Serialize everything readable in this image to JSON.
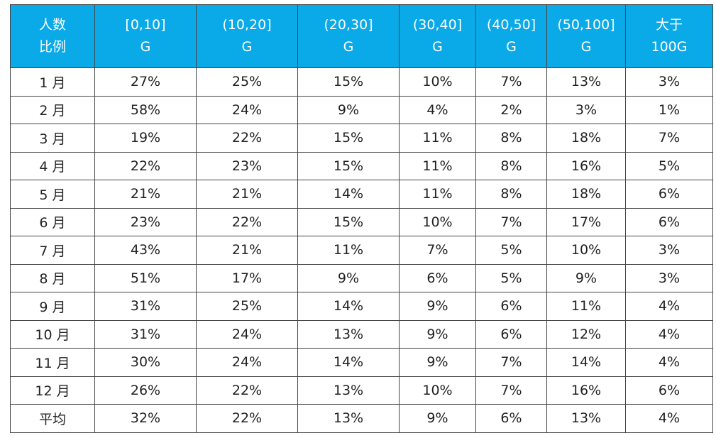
{
  "table": {
    "header": [
      [
        "人数",
        "比例"
      ],
      [
        "[0,10]",
        "G"
      ],
      [
        "(10,20]",
        "G"
      ],
      [
        "(20,30]",
        "G"
      ],
      [
        "(30,40]",
        "G"
      ],
      [
        "(40,50]",
        "G"
      ],
      [
        "(50,100]",
        "G"
      ],
      [
        "大于",
        "100G"
      ]
    ],
    "rows": [
      [
        "1 月",
        "27%",
        "25%",
        "15%",
        "10%",
        "7%",
        "13%",
        "3%"
      ],
      [
        "2 月",
        "58%",
        "24%",
        "9%",
        "4%",
        "2%",
        "3%",
        "1%"
      ],
      [
        "3 月",
        "19%",
        "22%",
        "15%",
        "11%",
        "8%",
        "18%",
        "7%"
      ],
      [
        "4 月",
        "22%",
        "23%",
        "15%",
        "11%",
        "8%",
        "16%",
        "5%"
      ],
      [
        "5 月",
        "21%",
        "21%",
        "14%",
        "11%",
        "8%",
        "18%",
        "6%"
      ],
      [
        "6 月",
        "23%",
        "22%",
        "15%",
        "10%",
        "7%",
        "17%",
        "6%"
      ],
      [
        "7 月",
        "43%",
        "21%",
        "11%",
        "7%",
        "5%",
        "10%",
        "3%"
      ],
      [
        "8 月",
        "51%",
        "17%",
        "9%",
        "6%",
        "5%",
        "9%",
        "3%"
      ],
      [
        "9 月",
        "31%",
        "25%",
        "14%",
        "9%",
        "6%",
        "11%",
        "4%"
      ],
      [
        "10 月",
        "31%",
        "24%",
        "13%",
        "9%",
        "6%",
        "12%",
        "4%"
      ],
      [
        "11 月",
        "30%",
        "24%",
        "14%",
        "9%",
        "7%",
        "14%",
        "4%"
      ],
      [
        "12 月",
        "26%",
        "22%",
        "13%",
        "10%",
        "7%",
        "16%",
        "6%"
      ],
      [
        "平均",
        "32%",
        "22%",
        "13%",
        "9%",
        "6%",
        "13%",
        "4%"
      ]
    ]
  }
}
